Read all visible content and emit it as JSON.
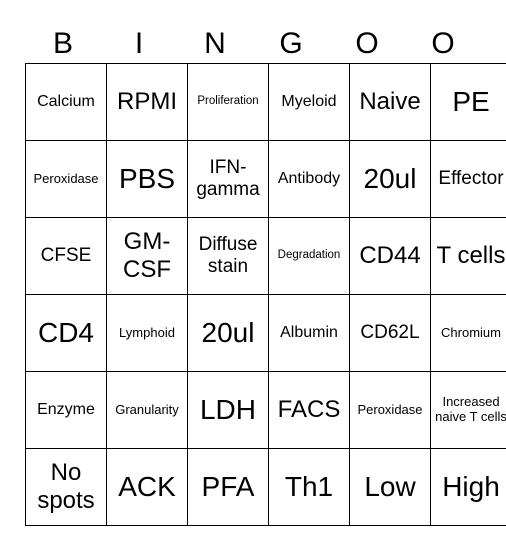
{
  "header": [
    "B",
    "I",
    "N",
    "G",
    "O",
    "O"
  ],
  "rows": [
    [
      "Calcium",
      "RPMI",
      "Proliferation",
      "Myeloid",
      "Naive",
      "PE"
    ],
    [
      "Peroxidase",
      "PBS",
      "IFN-gamma",
      "Antibody",
      "20ul",
      "Effector"
    ],
    [
      "CFSE",
      "GM-CSF",
      "Diffuse stain",
      "Degradation",
      "CD44",
      "T cells"
    ],
    [
      "CD4",
      "Lymphoid",
      "20ul",
      "Albumin",
      "CD62L",
      "Chromium"
    ],
    [
      "Enzyme",
      "Granularity",
      "LDH",
      "FACS",
      "Peroxidase",
      "Increased naive T cells"
    ],
    [
      "No spots",
      "ACK",
      "PFA",
      "Th1",
      "Low",
      "High"
    ]
  ]
}
